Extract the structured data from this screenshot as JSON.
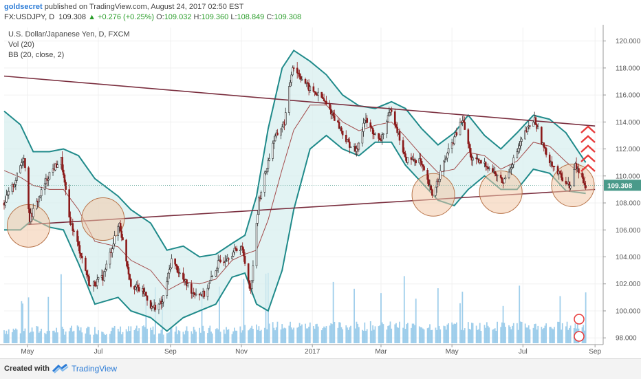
{
  "header": {
    "author": "goldsecret",
    "published_text": "published on TradingView.com, August 24, 2017 02:50 EST",
    "symbol": "FX:USDJPY, D",
    "last": "109.308",
    "change": "▲ +0.276 (+0.25%)",
    "o_label": "O:",
    "o_value": "109.032",
    "h_label": "H:",
    "h_value": "109.360",
    "l_label": "L:",
    "l_value": "108.849",
    "c_label": "C:",
    "c_value": "109.308"
  },
  "legend": {
    "instrument": "U.S. Dollar/Japanese Yen, D, FXCM",
    "volume": "Vol (20)",
    "bollinger": "BB (20, close, 2)"
  },
  "footer": {
    "created_with": "Created with",
    "brand": "TradingView"
  },
  "colors": {
    "up_candle": "#2f2f2f",
    "down_candle": "#8b1a1a",
    "bb_band": "#1f8a8a",
    "bb_fill": "#d8efef",
    "bb_basis": "#a34c4c",
    "trendline": "#7a2e3e",
    "circle_fill": "#f3c9a8",
    "circle_stroke": "#b8744a",
    "arrow": "#e83a3a",
    "price_tag": "#4a9a8a",
    "volume_bar": "#8ec6e8"
  },
  "chart_data": {
    "type": "candlestick",
    "ylim": [
      97.5,
      121.0
    ],
    "yticks": [
      98.0,
      100.0,
      102.0,
      104.0,
      106.0,
      108.0,
      110.0,
      112.0,
      114.0,
      116.0,
      118.0,
      120.0
    ],
    "ytick_labels": [
      "98.000",
      "100.000",
      "102.000",
      "104.000",
      "106.000",
      "108.000",
      "110.000",
      "112.000",
      "114.000",
      "116.000",
      "118.000",
      "120.000"
    ],
    "x_range": [
      "2016-04-11",
      "2017-09-08"
    ],
    "xticks": [
      "2016-05-01",
      "2016-07-01",
      "2016-09-01",
      "2016-11-01",
      "2017-01-01",
      "2017-03-01",
      "2017-05-01",
      "2017-07-01",
      "2017-09-01"
    ],
    "xtick_labels": [
      "May",
      "Jul",
      "Sep",
      "Nov",
      "2017",
      "Mar",
      "May",
      "Jul",
      "Sep"
    ],
    "last_price": 109.308,
    "last_price_label": "109.308",
    "price_path": [
      [
        "2016-04-11",
        108.0
      ],
      [
        "2016-04-20",
        109.5
      ],
      [
        "2016-04-28",
        111.5
      ],
      [
        "2016-05-03",
        106.8
      ],
      [
        "2016-05-12",
        108.6
      ],
      [
        "2016-05-20",
        110.2
      ],
      [
        "2016-05-30",
        111.2
      ],
      [
        "2016-06-06",
        106.9
      ],
      [
        "2016-06-16",
        104.2
      ],
      [
        "2016-06-24",
        101.8
      ],
      [
        "2016-07-05",
        102.5
      ],
      [
        "2016-07-19",
        106.5
      ],
      [
        "2016-07-29",
        102.0
      ],
      [
        "2016-08-10",
        101.3
      ],
      [
        "2016-08-16",
        100.2
      ],
      [
        "2016-08-25",
        100.6
      ],
      [
        "2016-09-02",
        103.8
      ],
      [
        "2016-09-12",
        102.3
      ],
      [
        "2016-09-20",
        101.4
      ],
      [
        "2016-09-30",
        101.2
      ],
      [
        "2016-10-12",
        103.5
      ],
      [
        "2016-10-24",
        104.3
      ],
      [
        "2016-11-01",
        104.8
      ],
      [
        "2016-11-09",
        101.5
      ],
      [
        "2016-11-16",
        108.2
      ],
      [
        "2016-11-28",
        112.5
      ],
      [
        "2016-12-08",
        114.0
      ],
      [
        "2016-12-15",
        118.2
      ],
      [
        "2016-12-29",
        116.5
      ],
      [
        "2017-01-09",
        115.8
      ],
      [
        "2017-01-19",
        114.5
      ],
      [
        "2017-01-31",
        112.5
      ],
      [
        "2017-02-08",
        111.8
      ],
      [
        "2017-02-15",
        114.2
      ],
      [
        "2017-02-28",
        112.5
      ],
      [
        "2017-03-10",
        115.0
      ],
      [
        "2017-03-22",
        111.2
      ],
      [
        "2017-04-03",
        111.2
      ],
      [
        "2017-04-14",
        108.6
      ],
      [
        "2017-04-25",
        111.2
      ],
      [
        "2017-05-10",
        114.2
      ],
      [
        "2017-05-18",
        111.2
      ],
      [
        "2017-05-31",
        110.8
      ],
      [
        "2017-06-14",
        109.5
      ],
      [
        "2017-06-23",
        111.2
      ],
      [
        "2017-07-03",
        113.2
      ],
      [
        "2017-07-11",
        114.2
      ],
      [
        "2017-07-20",
        111.8
      ],
      [
        "2017-07-31",
        110.2
      ],
      [
        "2017-08-11",
        109.2
      ],
      [
        "2017-08-15",
        110.8
      ],
      [
        "2017-08-24",
        109.3
      ]
    ],
    "bollinger_upper": [
      [
        "2016-04-11",
        114.8
      ],
      [
        "2016-04-25",
        113.8
      ],
      [
        "2016-05-06",
        111.8
      ],
      [
        "2016-05-20",
        111.8
      ],
      [
        "2016-06-01",
        112.0
      ],
      [
        "2016-06-14",
        111.5
      ],
      [
        "2016-06-28",
        109.8
      ],
      [
        "2016-07-18",
        108.5
      ],
      [
        "2016-07-29",
        107.5
      ],
      [
        "2016-08-15",
        106.5
      ],
      [
        "2016-08-29",
        104.5
      ],
      [
        "2016-09-12",
        104.8
      ],
      [
        "2016-09-26",
        104.0
      ],
      [
        "2016-10-10",
        104.2
      ],
      [
        "2016-10-24",
        105.0
      ],
      [
        "2016-11-04",
        105.6
      ],
      [
        "2016-11-14",
        108.5
      ],
      [
        "2016-11-24",
        113.5
      ],
      [
        "2016-12-06",
        118.0
      ],
      [
        "2016-12-16",
        119.3
      ],
      [
        "2016-12-30",
        118.5
      ],
      [
        "2017-01-13",
        117.5
      ],
      [
        "2017-01-27",
        116.0
      ],
      [
        "2017-02-10",
        115.2
      ],
      [
        "2017-02-24",
        115.0
      ],
      [
        "2017-03-10",
        115.5
      ],
      [
        "2017-03-22",
        115.0
      ],
      [
        "2017-04-05",
        113.5
      ],
      [
        "2017-04-19",
        112.3
      ],
      [
        "2017-05-03",
        113.2
      ],
      [
        "2017-05-15",
        114.5
      ],
      [
        "2017-05-29",
        113.0
      ],
      [
        "2017-06-12",
        112.0
      ],
      [
        "2017-06-26",
        113.2
      ],
      [
        "2017-07-10",
        114.5
      ],
      [
        "2017-07-24",
        114.2
      ],
      [
        "2017-08-07",
        113.2
      ],
      [
        "2017-08-24",
        111.0
      ]
    ],
    "bollinger_lower": [
      [
        "2016-04-11",
        106.0
      ],
      [
        "2016-04-25",
        106.0
      ],
      [
        "2016-05-06",
        106.8
      ],
      [
        "2016-05-20",
        106.2
      ],
      [
        "2016-06-01",
        106.0
      ],
      [
        "2016-06-14",
        103.5
      ],
      [
        "2016-06-28",
        100.5
      ],
      [
        "2016-07-18",
        101.0
      ],
      [
        "2016-07-29",
        100.0
      ],
      [
        "2016-08-15",
        99.5
      ],
      [
        "2016-08-29",
        98.5
      ],
      [
        "2016-09-12",
        99.5
      ],
      [
        "2016-09-26",
        100.0
      ],
      [
        "2016-10-10",
        100.5
      ],
      [
        "2016-10-24",
        102.5
      ],
      [
        "2016-11-04",
        102.8
      ],
      [
        "2016-11-14",
        100.5
      ],
      [
        "2016-11-24",
        100.0
      ],
      [
        "2016-12-06",
        103.0
      ],
      [
        "2016-12-16",
        107.5
      ],
      [
        "2016-12-30",
        112.0
      ],
      [
        "2017-01-13",
        113.0
      ],
      [
        "2017-01-27",
        112.0
      ],
      [
        "2017-02-10",
        111.5
      ],
      [
        "2017-02-24",
        112.5
      ],
      [
        "2017-03-10",
        112.5
      ],
      [
        "2017-03-22",
        110.8
      ],
      [
        "2017-04-05",
        109.5
      ],
      [
        "2017-04-19",
        108.2
      ],
      [
        "2017-05-03",
        107.8
      ],
      [
        "2017-05-15",
        109.0
      ],
      [
        "2017-05-29",
        110.0
      ],
      [
        "2017-06-12",
        109.0
      ],
      [
        "2017-06-26",
        109.0
      ],
      [
        "2017-07-10",
        110.5
      ],
      [
        "2017-07-24",
        110.2
      ],
      [
        "2017-08-07",
        108.9
      ],
      [
        "2017-08-24",
        108.7
      ]
    ],
    "trendlines": [
      {
        "from": [
          "2016-04-11",
          117.4
        ],
        "to": [
          "2017-09-01",
          113.7
        ]
      },
      {
        "from": [
          "2016-05-01",
          106.4
        ],
        "to": [
          "2017-09-01",
          109.0
        ]
      }
    ],
    "circles": [
      {
        "date": "2016-05-02",
        "price": 106.3
      },
      {
        "date": "2016-07-05",
        "price": 106.8
      },
      {
        "date": "2017-04-15",
        "price": 108.6
      },
      {
        "date": "2017-06-12",
        "price": 108.8
      },
      {
        "date": "2017-08-13",
        "price": 109.3
      }
    ]
  }
}
